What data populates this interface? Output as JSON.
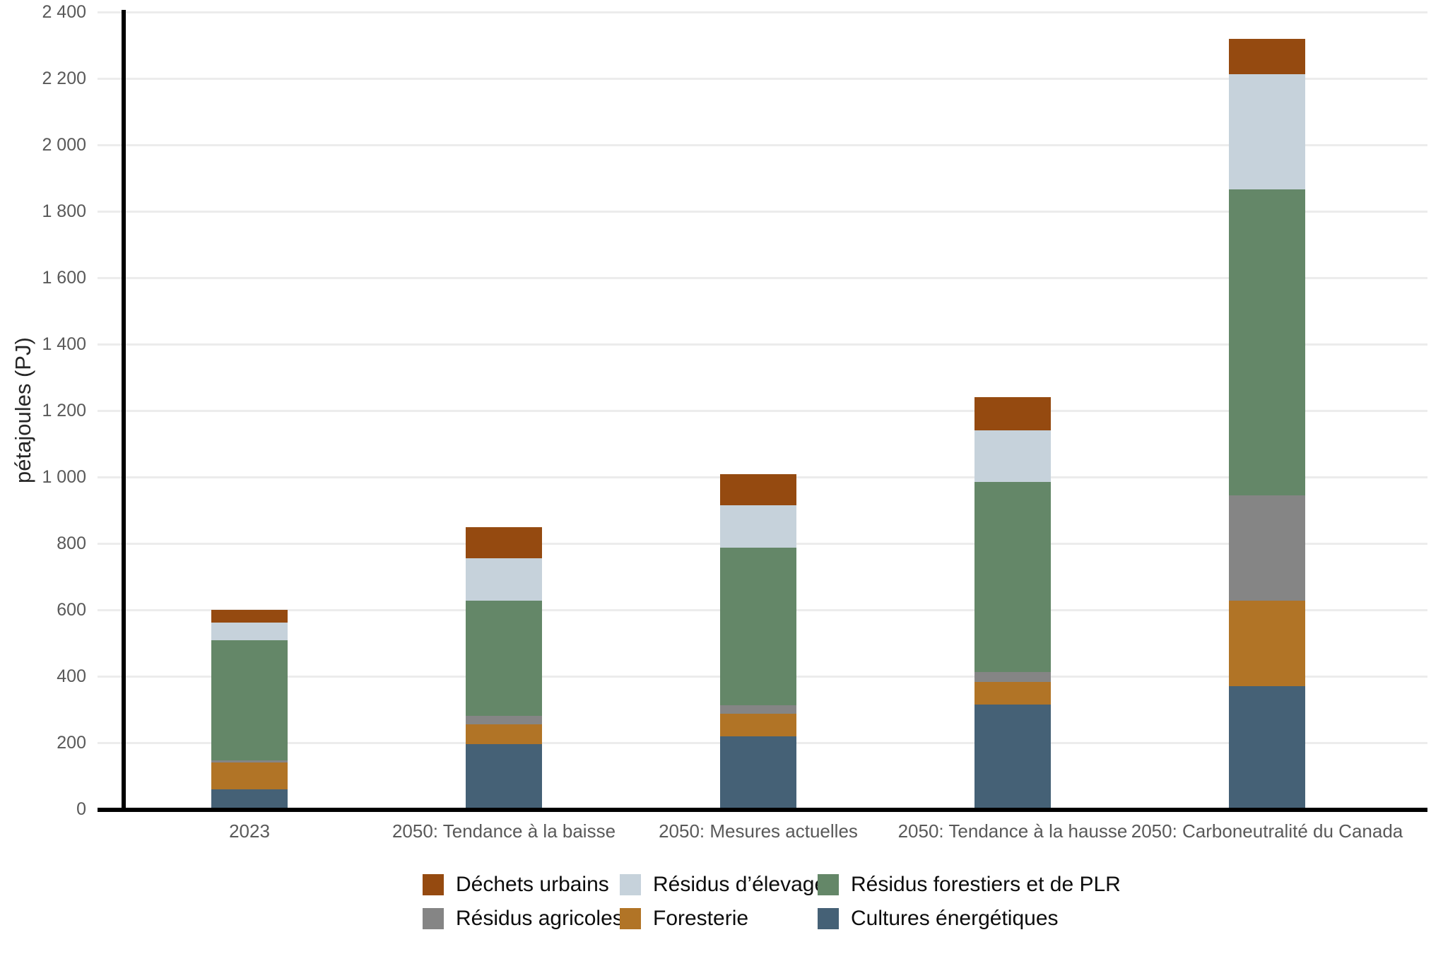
{
  "chart_data": {
    "type": "bar",
    "stacked": true,
    "ylabel": "pétajoules (PJ)",
    "ylim": [
      0,
      2400
    ],
    "grid": "horizontal",
    "legend_position": "bottom",
    "yticks": [
      [
        0,
        "0"
      ],
      [
        200,
        "200"
      ],
      [
        400,
        "400"
      ],
      [
        600,
        "600"
      ],
      [
        800,
        "800"
      ],
      [
        1000,
        "1 000"
      ],
      [
        1200,
        "1 200"
      ],
      [
        1400,
        "1 400"
      ],
      [
        1600,
        "1 600"
      ],
      [
        1800,
        "1 800"
      ],
      [
        2000,
        "2 000"
      ],
      [
        2200,
        "2 200"
      ],
      [
        2400,
        "2 400"
      ]
    ],
    "categories": [
      "2023",
      "2050: Tendance à la baisse",
      "2050: Mesures actuelles",
      "2050: Tendance à la hausse",
      "2050: Carboneutralité du Canada"
    ],
    "series": [
      {
        "name": "Cultures énergétiques",
        "color": "#456176",
        "values": [
          60,
          195,
          220,
          315,
          371
        ]
      },
      {
        "name": "Foresterie",
        "color": "#B17426",
        "values": [
          81,
          60,
          67,
          68,
          257
        ]
      },
      {
        "name": "Résidus agricoles",
        "color": "#858585",
        "values": [
          6,
          25,
          25,
          29,
          317
        ]
      },
      {
        "name": "Résidus forestiers et de PLR",
        "color": "#648768",
        "values": [
          362,
          348,
          475,
          574,
          920
        ]
      },
      {
        "name": "Résidus d’élevage",
        "color": "#C6D2DB",
        "values": [
          53,
          127,
          128,
          154,
          347
        ]
      },
      {
        "name": "Déchets urbains",
        "color": "#954A10",
        "values": [
          38,
          94,
          94,
          100,
          108
        ]
      }
    ],
    "totals": [
      600,
      849,
      1009,
      1240,
      2320
    ],
    "legend_order": [
      "Déchets urbains",
      "Résidus d’élevage",
      "Résidus forestiers et de PLR",
      "Résidus agricoles",
      "Foresterie",
      "Cultures énergétiques"
    ],
    "axis_color": "#000000",
    "gridline_color": "#ececec",
    "tick_label_color": "#595959"
  }
}
